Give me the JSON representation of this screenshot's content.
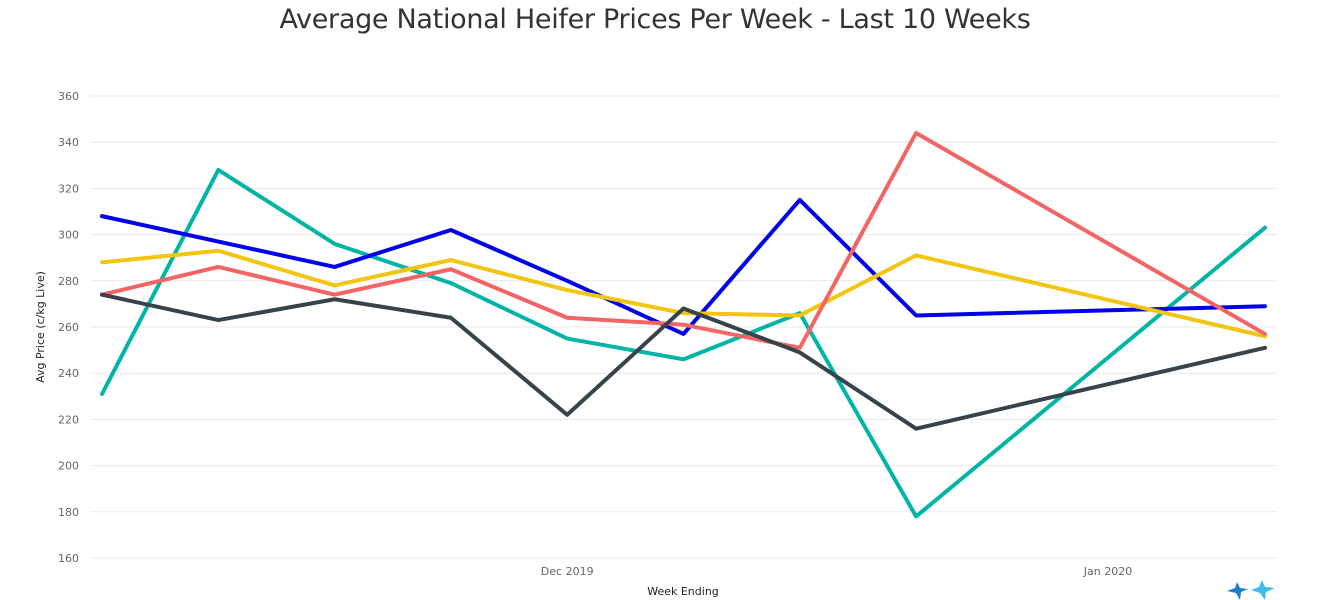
{
  "chart_data": {
    "type": "line",
    "title": "Average National Heifer Prices Per Week - Last 10 Weeks",
    "xlabel": "Week Ending",
    "ylabel": "Avg Price (c/kg Live)",
    "ylim": [
      160,
      360
    ],
    "yticks": [
      160,
      180,
      200,
      220,
      240,
      260,
      280,
      300,
      320,
      340,
      360
    ],
    "xticks": [
      {
        "label": "Dec 2019",
        "at_point": 4
      },
      {
        "label": "Jan 2020",
        "at_point": 8.65
      }
    ],
    "point_count": 11,
    "grid": true,
    "legend": "none",
    "series": [
      {
        "color": "#00B5A5",
        "values": [
          231,
          328,
          296,
          279,
          255,
          246,
          266,
          178,
          null,
          null,
          303
        ]
      },
      {
        "color": "#0000EE",
        "values": [
          308,
          297,
          286,
          302,
          280,
          257,
          315,
          265,
          null,
          null,
          269
        ]
      },
      {
        "color": "#F2C511",
        "values": [
          288,
          293,
          278,
          289,
          276,
          266,
          265,
          291,
          null,
          null,
          256
        ]
      },
      {
        "color": "#F46464",
        "values": [
          274,
          286,
          274,
          285,
          264,
          261,
          251,
          344,
          null,
          null,
          257
        ]
      },
      {
        "color": "#36434A",
        "values": [
          274,
          263,
          272,
          264,
          222,
          268,
          249,
          216,
          null,
          null,
          251
        ]
      }
    ]
  },
  "logo": {
    "name": "heifer-brand-logo-icon",
    "colors": [
      "#1E7FC8",
      "#3DBDEB"
    ]
  }
}
